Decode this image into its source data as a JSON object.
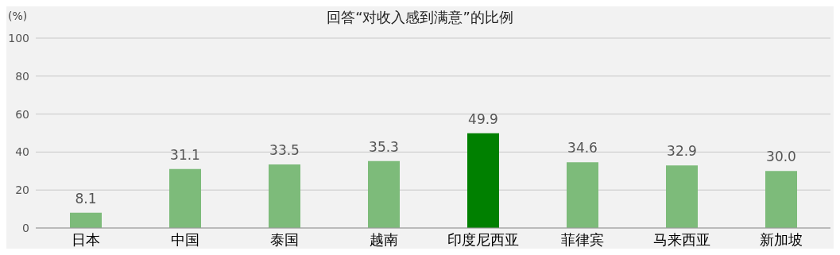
{
  "chart_data": {
    "type": "bar",
    "title": "回答“对收入感到满意”的比例",
    "ylabel": "(%)",
    "categories": [
      "日本",
      "中国",
      "泰国",
      "越南",
      "印度尼西亚",
      "菲律宾",
      "马来西亚",
      "新加坡"
    ],
    "values": [
      8.1,
      31.1,
      33.5,
      35.3,
      49.9,
      34.6,
      32.9,
      30.0
    ],
    "value_labels": [
      "8.1",
      "31.1",
      "33.5",
      "35.3",
      "49.9",
      "34.6",
      "32.9",
      "30.0"
    ],
    "colors": [
      "#7dbb7a",
      "#7dbb7a",
      "#7dbb7a",
      "#7dbb7a",
      "#008000",
      "#7dbb7a",
      "#7dbb7a",
      "#7dbb7a"
    ],
    "ylim": [
      0,
      100
    ],
    "yticks": [
      0,
      20,
      40,
      60,
      80,
      100
    ],
    "grid": "y"
  }
}
